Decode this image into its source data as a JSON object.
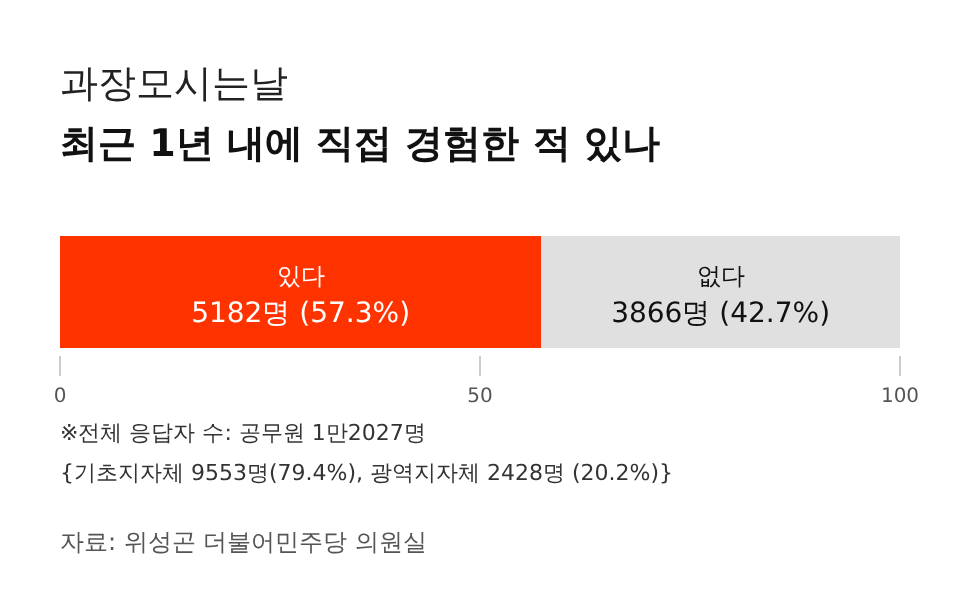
{
  "chart_data": {
    "type": "bar",
    "orientation": "horizontal",
    "stacked": true,
    "title": "과장모시는날",
    "subtitle": "최근 1년 내에 직접 경험한 적 있나",
    "categories": [
      null
    ],
    "series": [
      {
        "name": "있다",
        "color": "#ff3300",
        "values": [
          57.3
        ],
        "value_labels": [
          "5182명 (57.3%)"
        ]
      },
      {
        "name": "없다",
        "color": "#e0e0e0",
        "values": [
          42.7
        ],
        "value_labels": [
          "3866명 (42.7%)"
        ]
      }
    ],
    "xlim": [
      0,
      100
    ],
    "xticks": [
      0,
      50,
      100
    ],
    "annotations": [
      "※전체 응답자 수: 공무원 1만2027명",
      "{기초지자체 9553명(79.4%), 광역지자체 2428명 (20.2%)}",
      "자료: 위성곤 더불어민주당 의원실"
    ]
  }
}
